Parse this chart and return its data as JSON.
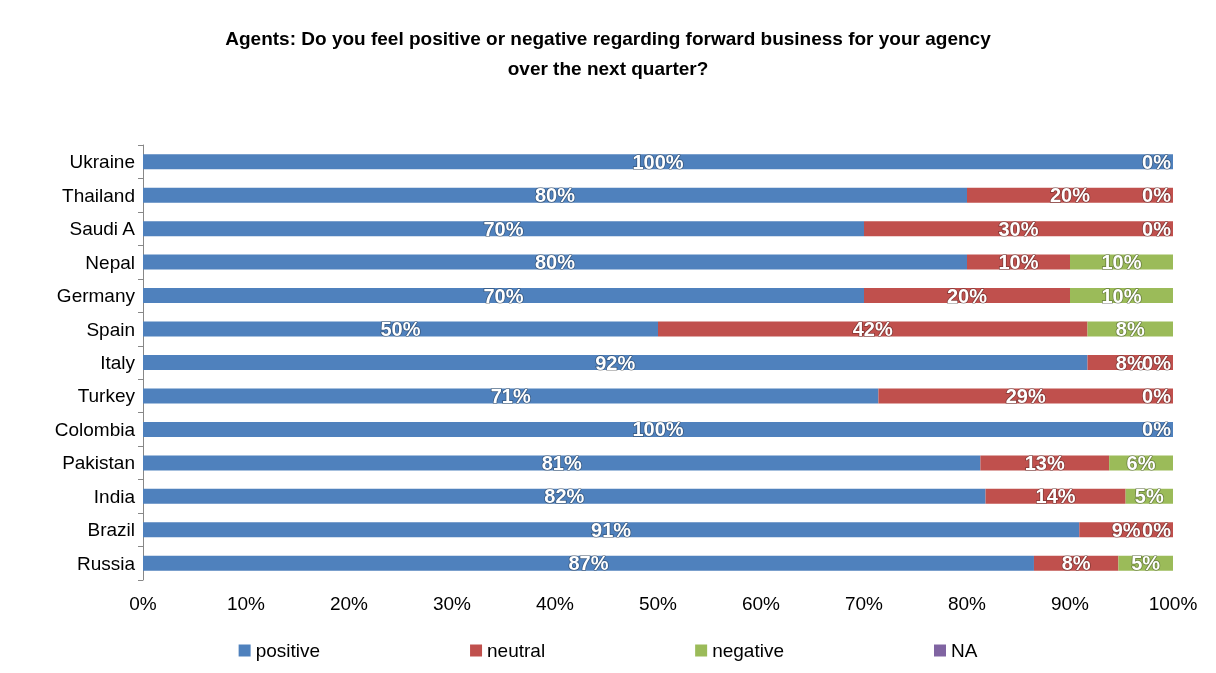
{
  "chart_data": {
    "type": "bar",
    "orientation": "horizontal",
    "stacked": true,
    "title": "Agents: Do you feel positive or negative regarding forward business for your agency\nover the next quarter?",
    "categories": [
      "Ukraine",
      "Thailand",
      "Saudi A",
      "Nepal",
      "Germany",
      "Spain",
      "Italy",
      "Turkey",
      "Colombia",
      "Pakistan",
      "India",
      "Brazil",
      "Russia"
    ],
    "series": [
      {
        "name": "positive",
        "color": "#4f81bd",
        "values": [
          100,
          80,
          70,
          80,
          70,
          50,
          91.7,
          71.4,
          100,
          81.3,
          81.8,
          90.9,
          86.5
        ],
        "value_labels": [
          "100%",
          "80%",
          "70%",
          "80%",
          "70%",
          "50%",
          "92%",
          "71%",
          "100%",
          "81%",
          "82%",
          "91%",
          "87%"
        ]
      },
      {
        "name": "neutral",
        "color": "#c0504d",
        "values": [
          0,
          20,
          30,
          10,
          20,
          41.7,
          8.3,
          28.6,
          0,
          12.5,
          13.6,
          9.1,
          8.2
        ],
        "value_labels": [
          null,
          "20%",
          "30%",
          "10%",
          "20%",
          "42%",
          "8%",
          "29%",
          null,
          "13%",
          "14%",
          "9%",
          "8%"
        ]
      },
      {
        "name": "negative",
        "color": "#9bbb59",
        "values": [
          0,
          0,
          0,
          10,
          10,
          8.3,
          0,
          0,
          0,
          6.2,
          4.6,
          0,
          5.3
        ],
        "value_labels": [
          "0%",
          "0%",
          "0%",
          "10%",
          "10%",
          "8%",
          "0%",
          "0%",
          "0%",
          "6%",
          "5%",
          "0%",
          "5%"
        ]
      },
      {
        "name": "NA",
        "color": "#8064a2",
        "values": [
          0,
          0,
          0,
          0,
          0,
          0,
          0,
          0,
          0,
          0,
          0,
          0,
          0
        ]
      }
    ],
    "xlim": [
      0,
      100
    ],
    "xticks": [
      {
        "value": 0,
        "label": "0%"
      },
      {
        "value": 10,
        "label": "10%"
      },
      {
        "value": 20,
        "label": "20%"
      },
      {
        "value": 30,
        "label": "30%"
      },
      {
        "value": 40,
        "label": "40%"
      },
      {
        "value": 50,
        "label": "50%"
      },
      {
        "value": 60,
        "label": "60%"
      },
      {
        "value": 70,
        "label": "70%"
      },
      {
        "value": 80,
        "label": "80%"
      },
      {
        "value": 90,
        "label": "90%"
      },
      {
        "value": 100,
        "label": "100%"
      }
    ],
    "legend": "bottom"
  }
}
